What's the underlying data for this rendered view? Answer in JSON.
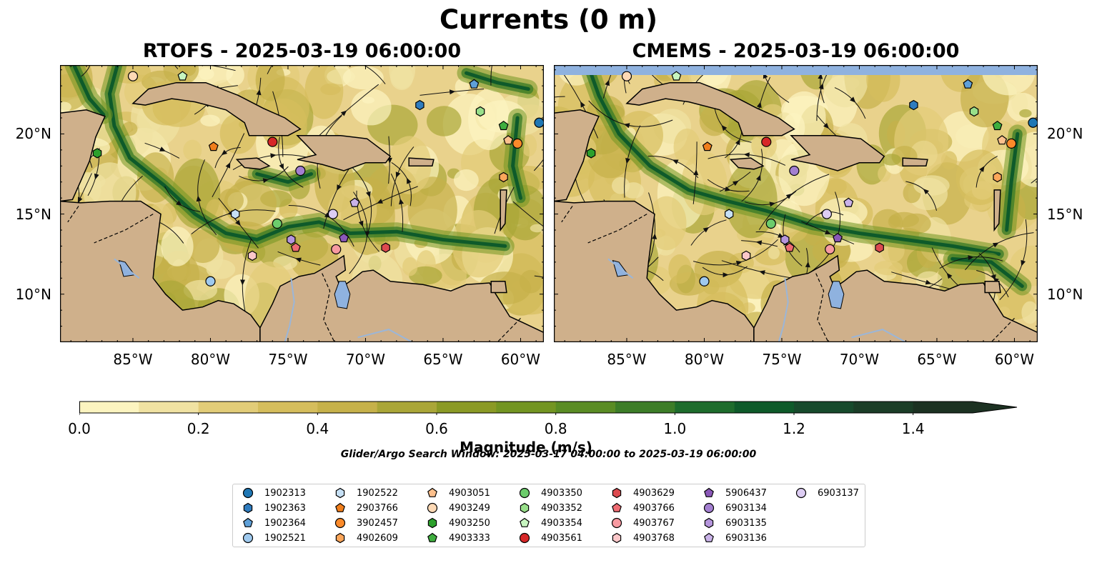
{
  "title": "Currents (0 m)",
  "panels": [
    {
      "title": "RTOFS - 2025-03-19 06:00:00"
    },
    {
      "title": "CMEMS - 2025-03-19 06:00:00"
    }
  ],
  "axes": {
    "lon_ticks": [
      "85°W",
      "80°W",
      "75°W",
      "70°W",
      "65°W",
      "60°W"
    ],
    "lon_values": [
      -85,
      -80,
      -75,
      -70,
      -65,
      -60
    ],
    "lat_ticks": [
      "20°N",
      "15°N",
      "10°N"
    ],
    "lat_values": [
      20,
      15,
      10
    ],
    "lon_range": [
      -89.7,
      -58.5
    ],
    "lat_range": [
      7.0,
      24.3
    ]
  },
  "colorbar": {
    "label": "Magnitude (m/s)",
    "ticks": [
      "0.0",
      "0.2",
      "0.4",
      "0.6",
      "0.8",
      "1.0",
      "1.2",
      "1.4"
    ],
    "range": [
      0.0,
      1.5
    ],
    "extend": "max",
    "colors": [
      "#fcf4c0",
      "#f0e2a2",
      "#e2cc78",
      "#d5bd5c",
      "#c6b14a",
      "#aaa638",
      "#8b9a25",
      "#739522",
      "#5a8c24",
      "#3d7d28",
      "#1e6c2c",
      "#0e5a2a",
      "#174a2c",
      "#1b3d27",
      "#1c3122"
    ]
  },
  "search_window": "Glider/Argo Search Window: 2025-03-17 04:00:00 to 2025-03-19 06:00:00",
  "colors": {
    "land": "#cfb08b",
    "water": "#8fb2df",
    "ocean_base": "#e9d28c",
    "river": "#9bb6d8"
  },
  "legend": [
    {
      "id": "1902313",
      "marker": "circle",
      "color": "#1f77b4"
    },
    {
      "id": "1902363",
      "marker": "hexagon",
      "color": "#2f7cbf"
    },
    {
      "id": "1902364",
      "marker": "pentagon",
      "color": "#5fa0d8"
    },
    {
      "id": "1902521",
      "marker": "circle",
      "color": "#9fc9ee"
    },
    {
      "id": "1902522",
      "marker": "hexagon",
      "color": "#c6e0f5"
    },
    {
      "id": "2903766",
      "marker": "pentagon",
      "color": "#f07e1c"
    },
    {
      "id": "3902457",
      "marker": "circle",
      "color": "#fb8a2a"
    },
    {
      "id": "4902609",
      "marker": "hexagon",
      "color": "#fca65a"
    },
    {
      "id": "4903051",
      "marker": "pentagon",
      "color": "#fdc08d"
    },
    {
      "id": "4903249",
      "marker": "circle",
      "color": "#fdd9b5"
    },
    {
      "id": "4903250",
      "marker": "hexagon",
      "color": "#2ca02c"
    },
    {
      "id": "4903333",
      "marker": "pentagon",
      "color": "#3fae3f"
    },
    {
      "id": "4903350",
      "marker": "circle",
      "color": "#6ccc6c"
    },
    {
      "id": "4903352",
      "marker": "hexagon",
      "color": "#98df8a"
    },
    {
      "id": "4903354",
      "marker": "pentagon",
      "color": "#c7f5c0"
    },
    {
      "id": "4903561",
      "marker": "circle",
      "color": "#d62728"
    },
    {
      "id": "4903629",
      "marker": "hexagon",
      "color": "#dc4a4f"
    },
    {
      "id": "4903766",
      "marker": "pentagon",
      "color": "#ee6b72"
    },
    {
      "id": "4903767",
      "marker": "circle",
      "color": "#f79aa1"
    },
    {
      "id": "4903768",
      "marker": "hexagon",
      "color": "#fbc7c9"
    },
    {
      "id": "5906437",
      "marker": "pentagon",
      "color": "#8a58b8"
    },
    {
      "id": "6903134",
      "marker": "circle",
      "color": "#a37fd0"
    },
    {
      "id": "6903135",
      "marker": "hexagon",
      "color": "#b595dc"
    },
    {
      "id": "6903136",
      "marker": "pentagon",
      "color": "#c9b2e8"
    },
    {
      "id": "6903137",
      "marker": "circle",
      "color": "#ddcdf3"
    }
  ],
  "floats": {
    "rtofs": [
      {
        "id": "4903249",
        "lon": -85.0,
        "lat": 23.6
      },
      {
        "id": "4903354",
        "lon": -81.8,
        "lat": 23.6
      },
      {
        "id": "1902364",
        "lon": -63.0,
        "lat": 23.1
      },
      {
        "id": "1902363",
        "lon": -66.5,
        "lat": 21.8
      },
      {
        "id": "4903352",
        "lon": -62.6,
        "lat": 21.4
      },
      {
        "id": "1902313",
        "lon": -58.8,
        "lat": 20.7
      },
      {
        "id": "4903333",
        "lon": -61.1,
        "lat": 20.5
      },
      {
        "id": "4903561",
        "lon": -76.0,
        "lat": 19.5
      },
      {
        "id": "2903766",
        "lon": -79.8,
        "lat": 19.2
      },
      {
        "id": "4903051",
        "lon": -60.8,
        "lat": 19.6
      },
      {
        "id": "3902457",
        "lon": -60.2,
        "lat": 19.4
      },
      {
        "id": "4903250",
        "lon": -87.3,
        "lat": 18.8
      },
      {
        "id": "6903134",
        "lon": -74.2,
        "lat": 17.7
      },
      {
        "id": "4902609",
        "lon": -61.1,
        "lat": 17.3
      },
      {
        "id": "6903136",
        "lon": -70.7,
        "lat": 15.7
      },
      {
        "id": "6903137",
        "lon": -72.1,
        "lat": 15.0
      },
      {
        "id": "1902522",
        "lon": -78.4,
        "lat": 15.0
      },
      {
        "id": "4903350",
        "lon": -75.7,
        "lat": 14.4
      },
      {
        "id": "6903135",
        "lon": -74.8,
        "lat": 13.4
      },
      {
        "id": "5906437",
        "lon": -71.4,
        "lat": 13.5
      },
      {
        "id": "4903766",
        "lon": -74.5,
        "lat": 12.9
      },
      {
        "id": "4903767",
        "lon": -71.9,
        "lat": 12.8
      },
      {
        "id": "4903629",
        "lon": -68.7,
        "lat": 12.9
      },
      {
        "id": "4903768",
        "lon": -77.3,
        "lat": 12.4
      },
      {
        "id": "1902521",
        "lon": -80.0,
        "lat": 10.8
      }
    ],
    "cmems": [
      {
        "id": "4903249",
        "lon": -85.0,
        "lat": 23.6
      },
      {
        "id": "4903354",
        "lon": -81.8,
        "lat": 23.6
      },
      {
        "id": "1902364",
        "lon": -63.0,
        "lat": 23.1
      },
      {
        "id": "1902363",
        "lon": -66.5,
        "lat": 21.8
      },
      {
        "id": "4903352",
        "lon": -62.6,
        "lat": 21.4
      },
      {
        "id": "1902313",
        "lon": -58.8,
        "lat": 20.7
      },
      {
        "id": "4903333",
        "lon": -61.1,
        "lat": 20.5
      },
      {
        "id": "4903561",
        "lon": -76.0,
        "lat": 19.5
      },
      {
        "id": "2903766",
        "lon": -79.8,
        "lat": 19.2
      },
      {
        "id": "4903051",
        "lon": -60.8,
        "lat": 19.6
      },
      {
        "id": "3902457",
        "lon": -60.2,
        "lat": 19.4
      },
      {
        "id": "4903250",
        "lon": -87.3,
        "lat": 18.8
      },
      {
        "id": "6903134",
        "lon": -74.2,
        "lat": 17.7
      },
      {
        "id": "4902609",
        "lon": -61.1,
        "lat": 17.3
      },
      {
        "id": "6903136",
        "lon": -70.7,
        "lat": 15.7
      },
      {
        "id": "6903137",
        "lon": -72.1,
        "lat": 15.0
      },
      {
        "id": "1902522",
        "lon": -78.4,
        "lat": 15.0
      },
      {
        "id": "4903350",
        "lon": -75.7,
        "lat": 14.4
      },
      {
        "id": "6903135",
        "lon": -74.8,
        "lat": 13.4
      },
      {
        "id": "5906437",
        "lon": -71.4,
        "lat": 13.5
      },
      {
        "id": "4903766",
        "lon": -74.5,
        "lat": 12.9
      },
      {
        "id": "4903767",
        "lon": -71.9,
        "lat": 12.8
      },
      {
        "id": "4903629",
        "lon": -68.7,
        "lat": 12.9
      },
      {
        "id": "4903768",
        "lon": -77.3,
        "lat": 12.4
      },
      {
        "id": "1902521",
        "lon": -80.0,
        "lat": 10.8
      }
    ]
  }
}
